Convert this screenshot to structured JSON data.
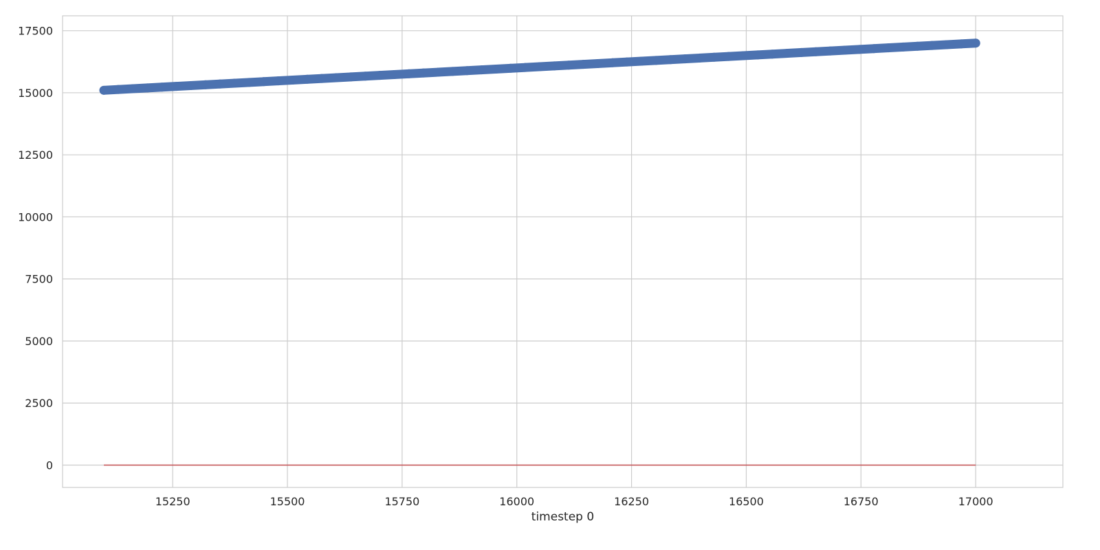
{
  "chart_data": {
    "type": "line",
    "xlabel": "timestep 0",
    "ylabel": "",
    "title": "",
    "xlim": [
      15010,
      17190
    ],
    "ylim": [
      -900,
      18100
    ],
    "x_ticks": [
      15250,
      15500,
      15750,
      16000,
      16250,
      16500,
      16750,
      17000
    ],
    "y_ticks": [
      0,
      2500,
      5000,
      7500,
      10000,
      12500,
      15000,
      17500
    ],
    "grid": true,
    "legend": "none",
    "series": [
      {
        "style": "scatter-markers",
        "color": "#4c72b0",
        "x": [
          15100,
          17000
        ],
        "y": [
          15100,
          17000
        ]
      },
      {
        "style": "line",
        "color": "#c44e52",
        "x": [
          15100,
          17000
        ],
        "y": [
          0,
          0
        ]
      }
    ]
  }
}
